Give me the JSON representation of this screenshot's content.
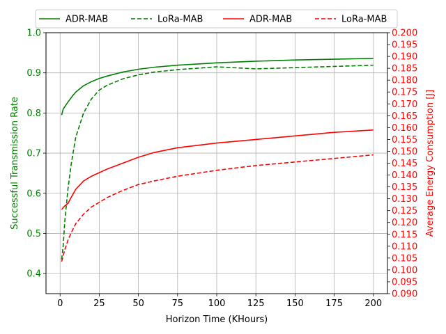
{
  "chart_data": {
    "type": "line",
    "xlabel": "Horizon Time (KHours)",
    "ylabel_left": "Successful Transmission Rate",
    "ylabel_right": "Average Energy Consumption [J]",
    "xlim": [
      -9,
      209
    ],
    "ylim_left": [
      0.35,
      1.0
    ],
    "ylim_right": [
      0.09,
      0.2
    ],
    "x_ticks": [
      0,
      25,
      50,
      75,
      100,
      125,
      150,
      175,
      200
    ],
    "x_tick_labels": [
      "0",
      "25",
      "50",
      "75",
      "100",
      "125",
      "150",
      "175",
      "200"
    ],
    "y_left_ticks": [
      0.4,
      0.5,
      0.6,
      0.7,
      0.8,
      0.9,
      1.0
    ],
    "y_left_tick_labels": [
      "0.4",
      "0.5",
      "0.6",
      "0.7",
      "0.8",
      "0.9",
      "1.0"
    ],
    "y_right_ticks": [
      0.09,
      0.095,
      0.1,
      0.105,
      0.11,
      0.115,
      0.12,
      0.125,
      0.13,
      0.135,
      0.14,
      0.145,
      0.15,
      0.155,
      0.16,
      0.165,
      0.17,
      0.175,
      0.18,
      0.185,
      0.19,
      0.195,
      0.2
    ],
    "y_right_tick_labels": [
      "0.090",
      "0.095",
      "0.100",
      "0.105",
      "0.110",
      "0.115",
      "0.120",
      "0.125",
      "0.130",
      "0.135",
      "0.140",
      "0.145",
      "0.150",
      "0.155",
      "0.160",
      "0.165",
      "0.170",
      "0.175",
      "0.180",
      "0.185",
      "0.190",
      "0.195",
      "0.200"
    ],
    "grid": true,
    "legend_position": "top-center",
    "series": [
      {
        "name": "ADR-MAB",
        "axis": "left",
        "color": "#008000",
        "dash": "solid",
        "x": [
          1,
          2,
          5,
          8,
          10,
          15,
          20,
          25,
          30,
          40,
          50,
          60,
          75,
          100,
          125,
          150,
          175,
          200
        ],
        "y": [
          0.795,
          0.81,
          0.827,
          0.843,
          0.852,
          0.868,
          0.878,
          0.886,
          0.892,
          0.902,
          0.909,
          0.914,
          0.919,
          0.925,
          0.929,
          0.932,
          0.934,
          0.936
        ]
      },
      {
        "name": "LoRa-MAB",
        "axis": "left",
        "color": "#008000",
        "dash": "dashed",
        "x": [
          1,
          2,
          3,
          5,
          7,
          10,
          15,
          20,
          25,
          30,
          40,
          50,
          60,
          75,
          100,
          125,
          150,
          175,
          200
        ],
        "y": [
          0.435,
          0.47,
          0.53,
          0.61,
          0.67,
          0.74,
          0.8,
          0.835,
          0.857,
          0.869,
          0.885,
          0.895,
          0.902,
          0.908,
          0.915,
          0.91,
          0.913,
          0.916,
          0.919
        ]
      },
      {
        "name": "ADR-MAB",
        "axis": "right",
        "color": "#ff0000",
        "dash": "solid",
        "x": [
          1,
          3,
          5,
          7,
          10,
          15,
          20,
          25,
          30,
          40,
          50,
          60,
          75,
          100,
          125,
          150,
          175,
          200
        ],
        "y": [
          0.1255,
          0.127,
          0.128,
          0.1305,
          0.134,
          0.1375,
          0.1395,
          0.141,
          0.1425,
          0.145,
          0.1475,
          0.1495,
          0.1515,
          0.1535,
          0.155,
          0.1565,
          0.158,
          0.159
        ]
      },
      {
        "name": "LoRa-MAB",
        "axis": "right",
        "color": "#ff0000",
        "dash": "dashed",
        "x": [
          1,
          2,
          3,
          5,
          7,
          10,
          15,
          20,
          25,
          30,
          40,
          50,
          60,
          75,
          100,
          125,
          150,
          175,
          200
        ],
        "y": [
          0.1035,
          0.106,
          0.1085,
          0.1125,
          0.1155,
          0.1195,
          0.1235,
          0.1265,
          0.1285,
          0.1305,
          0.1335,
          0.136,
          0.1375,
          0.1395,
          0.142,
          0.144,
          0.1455,
          0.147,
          0.1485
        ]
      }
    ]
  }
}
